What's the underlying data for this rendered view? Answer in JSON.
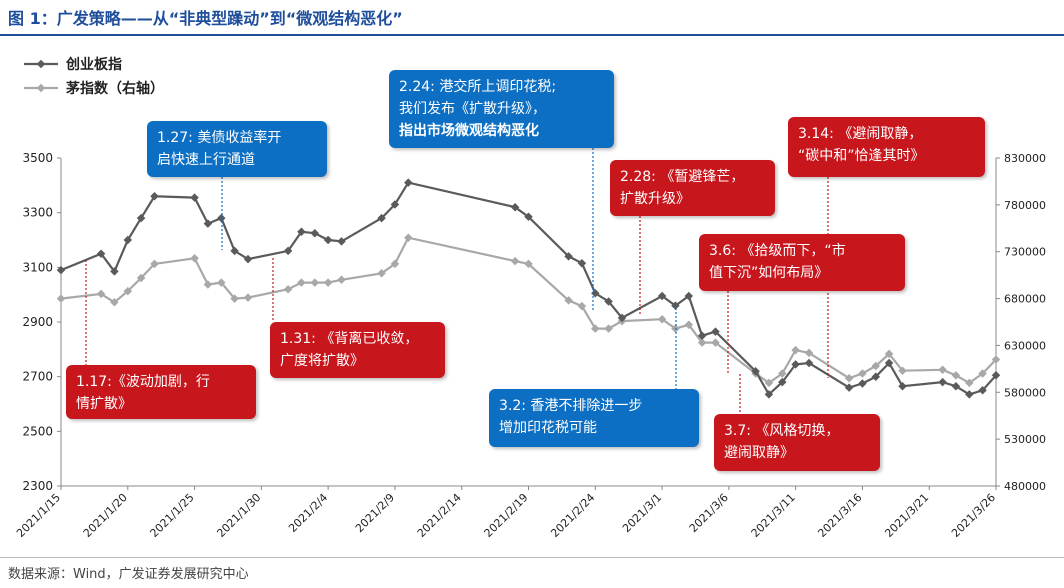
{
  "title": "图 1：广发策略——从“非典型躁动”到“微观结构恶化”",
  "source": "数据来源：Wind，广发证券发展研究中心",
  "chart_data": {
    "type": "line",
    "x_dates": [
      "2021/1/15",
      "2021/1/18",
      "2021/1/19",
      "2021/1/20",
      "2021/1/21",
      "2021/1/22",
      "2021/1/25",
      "2021/1/26",
      "2021/1/27",
      "2021/1/28",
      "2021/1/29",
      "2021/2/1",
      "2021/2/2",
      "2021/2/3",
      "2021/2/4",
      "2021/2/5",
      "2021/2/8",
      "2021/2/9",
      "2021/2/10",
      "2021/2/18",
      "2021/2/19",
      "2021/2/22",
      "2021/2/23",
      "2021/2/24",
      "2021/2/25",
      "2021/2/26",
      "2021/3/1",
      "2021/3/2",
      "2021/3/3",
      "2021/3/4",
      "2021/3/5",
      "2021/3/8",
      "2021/3/9",
      "2021/3/10",
      "2021/3/11",
      "2021/3/12",
      "2021/3/15",
      "2021/3/16",
      "2021/3/17",
      "2021/3/18",
      "2021/3/19",
      "2021/3/22",
      "2021/3/23",
      "2021/3/24",
      "2021/3/25",
      "2021/3/26"
    ],
    "x_tick_labels": [
      "2021/1/15",
      "2021/1/20",
      "2021/1/25",
      "2021/1/30",
      "2021/2/4",
      "2021/2/9",
      "2021/2/14",
      "2021/2/19",
      "2021/2/24",
      "2021/3/1",
      "2021/3/6",
      "2021/3/11",
      "2021/3/16",
      "2021/3/21",
      "2021/3/26"
    ],
    "y_left": {
      "min": 2300,
      "max": 3500,
      "ticks": [
        "2300",
        "2500",
        "2700",
        "2900",
        "3100",
        "3300",
        "3500"
      ]
    },
    "y_right": {
      "min": 480000,
      "max": 830000,
      "ticks": [
        "480000",
        "530000",
        "580000",
        "630000",
        "680000",
        "730000",
        "780000",
        "830000"
      ]
    },
    "series": [
      {
        "name": "创业板指",
        "axis": "left",
        "color": "#5a5a5a",
        "values": [
          3090,
          3150,
          3085,
          3200,
          3280,
          3360,
          3355,
          3260,
          3280,
          3160,
          3130,
          3160,
          3230,
          3225,
          3200,
          3195,
          3280,
          3330,
          3410,
          3320,
          3285,
          3140,
          3115,
          3005,
          2975,
          2915,
          2995,
          2960,
          2995,
          2850,
          2865,
          2720,
          2635,
          2680,
          2745,
          2750,
          2660,
          2675,
          2700,
          2750,
          2665,
          2680,
          2665,
          2635,
          2650,
          2705
        ]
      },
      {
        "name": "茅指数（右轴）",
        "axis": "right",
        "color": "#a8a8a8",
        "values": [
          680000,
          685000,
          676000,
          688000,
          702000,
          717000,
          723000,
          695000,
          697000,
          680000,
          681000,
          690000,
          697000,
          697000,
          697000,
          700000,
          707000,
          717000,
          745000,
          720000,
          717000,
          678000,
          672000,
          648000,
          648000,
          656000,
          658000,
          648000,
          652000,
          633000,
          633000,
          600000,
          590000,
          600000,
          625000,
          622000,
          595000,
          600000,
          608000,
          621000,
          603000,
          604000,
          598000,
          590000,
          600000,
          615000
        ]
      }
    ]
  },
  "annotations": [
    {
      "id": "a1",
      "color": "red",
      "lines": [
        "1.17:《波动加剧，行",
        "情扩散》"
      ]
    },
    {
      "id": "a2",
      "color": "blue",
      "lines": [
        "1.27: 美债收益率开",
        "启快速上行通道"
      ]
    },
    {
      "id": "a3",
      "color": "red",
      "lines": [
        "1.31: 《背离已收敛，",
        "广度将扩散》"
      ]
    },
    {
      "id": "a4",
      "color": "blue",
      "lines": [
        "2.24: 港交所上调印花税;",
        "我们发布《扩散升级》，",
        "指出市场微观结构恶化"
      ]
    },
    {
      "id": "a5",
      "color": "red",
      "lines": [
        "2.28: 《暂避锋芒，",
        "扩散升级》"
      ]
    },
    {
      "id": "a6",
      "color": "blue",
      "lines": [
        "3.2: 香港不排除进一步",
        "增加印花税可能"
      ]
    },
    {
      "id": "a7",
      "color": "red",
      "lines": [
        "3.6: 《拾级而下，“市",
        "值下沉”如何布局》"
      ]
    },
    {
      "id": "a8",
      "color": "red",
      "lines": [
        "3.7: 《风格切换，",
        "避闹取静》"
      ]
    },
    {
      "id": "a9",
      "color": "red",
      "lines": [
        "3.14: 《避闹取静，",
        "“碳中和”恰逢其时》"
      ]
    }
  ]
}
